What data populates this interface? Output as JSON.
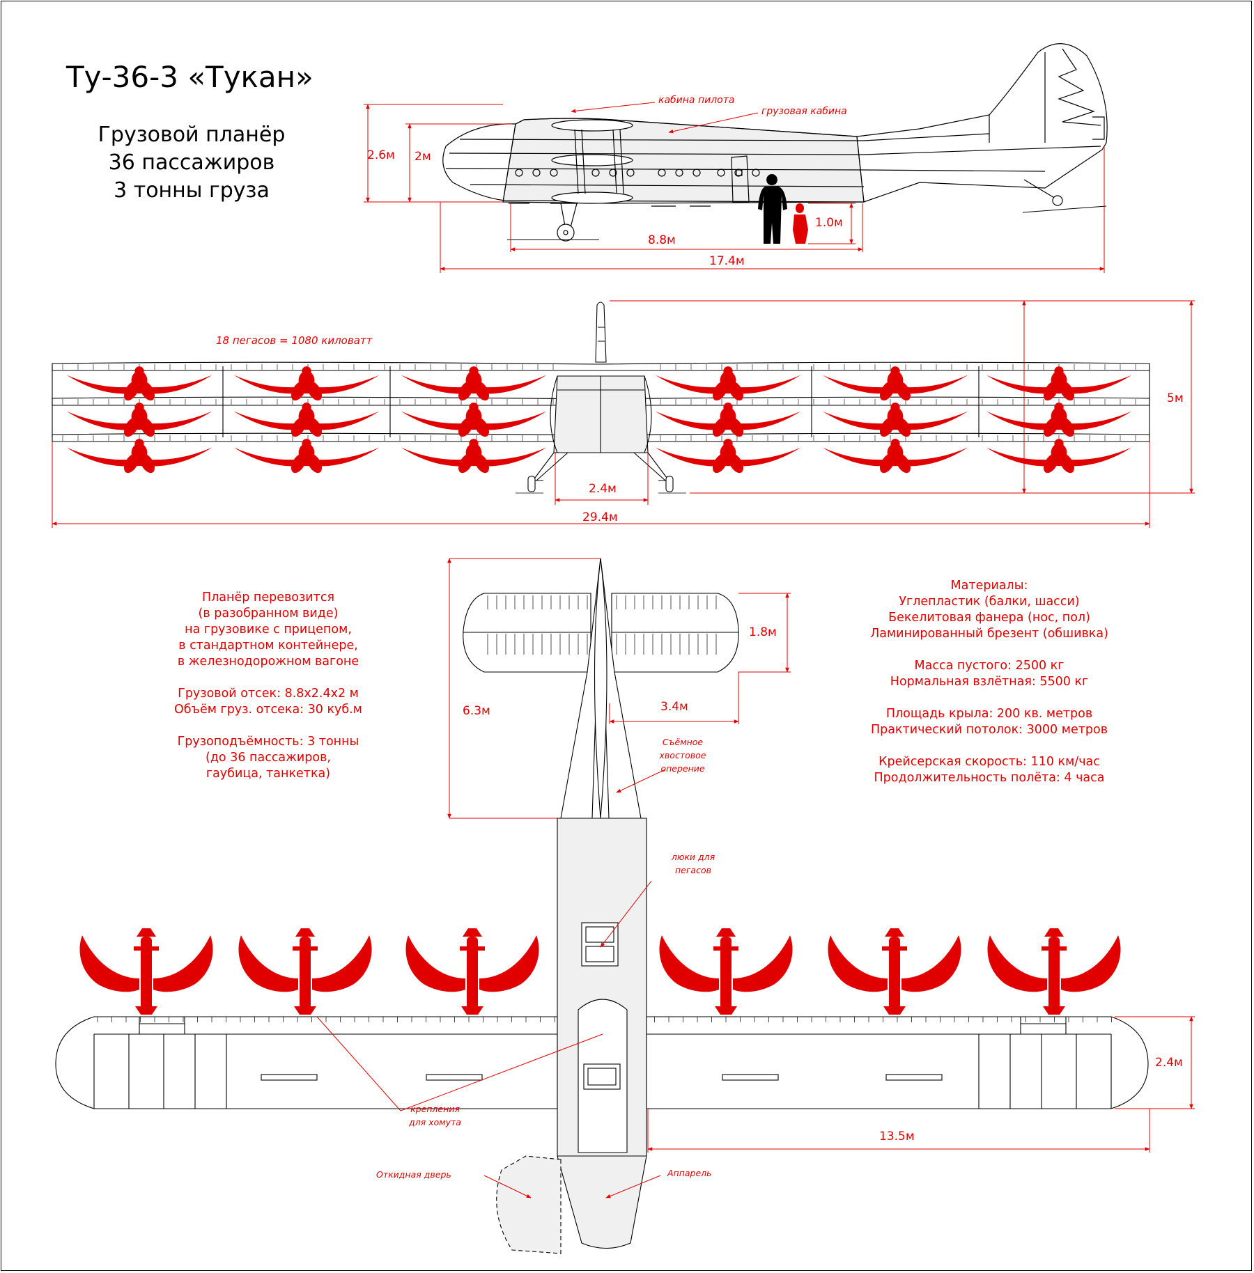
{
  "title": "Ту-36-3 «Тукан»",
  "subtitle": [
    "Грузовой планёр",
    "36 пассажиров",
    "3 тонны груза"
  ],
  "side_view": {
    "labels": {
      "cockpit": "кабина пилота",
      "cargo_cabin": "грузовая кабина"
    },
    "dims": {
      "height_total": "2.6м",
      "height_cabin": "2м",
      "person": "1.0м",
      "cabin_length": "8.8м",
      "length": "17.4м"
    }
  },
  "front_view": {
    "power_note": "18 пегасов = 1080 киловатт",
    "dims": {
      "height": "5м",
      "fuselage_width": "2.4м",
      "span": "29.4м"
    }
  },
  "top_view": {
    "dims": {
      "tail_chord": "1.8м",
      "tail_length": "6.3м",
      "tail_half_span": "3.4м",
      "wing_chord": "2.4м",
      "wing_half_span": "13.5м"
    },
    "labels": {
      "removable_tail": [
        "Съёмное",
        "хвостовое",
        "оперение"
      ],
      "hatches": [
        "люки для",
        "пегасов"
      ],
      "mounts": [
        "крепления",
        "для хомута"
      ],
      "door": "Откидная дверь",
      "ramp": "Аппарель"
    }
  },
  "transport_block": [
    "Планёр перевозится",
    "(в разобранном виде)",
    "на грузовике с прицепом,",
    "в стандартном контейнере,",
    "в железнодорожном вагоне",
    "",
    "Грузовой отсек: 8.8х2.4х2 м",
    "Объём груз. отсека: 30 куб.м",
    "",
    "Грузоподъёмность: 3 тонны",
    "(до 36 пассажиров,",
    "гаубица, танкетка)"
  ],
  "specs_block": [
    "Материалы:",
    "Углепластик (балки, шасси)",
    "Бекелитовая фанера (нос, пол)",
    "Ламинированный брезент (обшивка)",
    "",
    "Масса пустого: 2500 кг",
    "Нормальная взлётная: 5500 кг",
    "",
    "Площадь крыла: 200 кв. метров",
    "Практический потолок: 3000 метров",
    "",
    "Крейсерская скорость: 110 км/час",
    "Продолжительность полёта: 4 часа"
  ],
  "colors": {
    "accent": "#e00000",
    "line": "#000000",
    "fill": "#f0f0f0"
  }
}
